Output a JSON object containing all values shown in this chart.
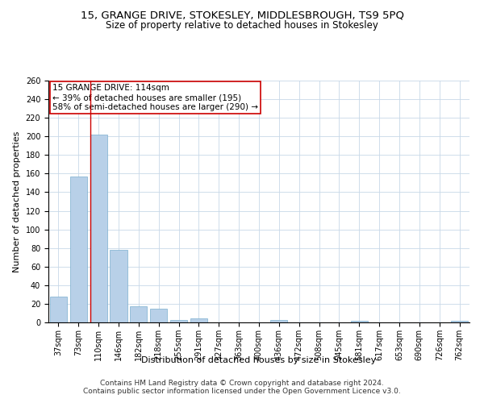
{
  "title1": "15, GRANGE DRIVE, STOKESLEY, MIDDLESBROUGH, TS9 5PQ",
  "title2": "Size of property relative to detached houses in Stokesley",
  "xlabel": "Distribution of detached houses by size in Stokesley",
  "ylabel": "Number of detached properties",
  "categories": [
    "37sqm",
    "73sqm",
    "110sqm",
    "146sqm",
    "182sqm",
    "218sqm",
    "255sqm",
    "291sqm",
    "327sqm",
    "363sqm",
    "400sqm",
    "436sqm",
    "472sqm",
    "508sqm",
    "545sqm",
    "581sqm",
    "617sqm",
    "653sqm",
    "690sqm",
    "726sqm",
    "762sqm"
  ],
  "values": [
    28,
    157,
    202,
    78,
    17,
    15,
    3,
    4,
    0,
    0,
    0,
    3,
    0,
    0,
    0,
    2,
    0,
    0,
    0,
    0,
    2
  ],
  "bar_color": "#b8d0e8",
  "bar_edge_color": "#7aaecf",
  "vline_x_index": 2,
  "vline_color": "#cc0000",
  "annotation_text": "15 GRANGE DRIVE: 114sqm\n← 39% of detached houses are smaller (195)\n58% of semi-detached houses are larger (290) →",
  "annotation_box_color": "#ffffff",
  "annotation_box_edge": "#cc0000",
  "ylim": [
    0,
    260
  ],
  "yticks": [
    0,
    20,
    40,
    60,
    80,
    100,
    120,
    140,
    160,
    180,
    200,
    220,
    240,
    260
  ],
  "bg_color": "#ffffff",
  "grid_color": "#c8d8e8",
  "footer": "Contains HM Land Registry data © Crown copyright and database right 2024.\nContains public sector information licensed under the Open Government Licence v3.0.",
  "title1_fontsize": 9.5,
  "title2_fontsize": 8.5,
  "xlabel_fontsize": 8,
  "ylabel_fontsize": 8,
  "tick_fontsize": 7,
  "annotation_fontsize": 7.5,
  "footer_fontsize": 6.5
}
